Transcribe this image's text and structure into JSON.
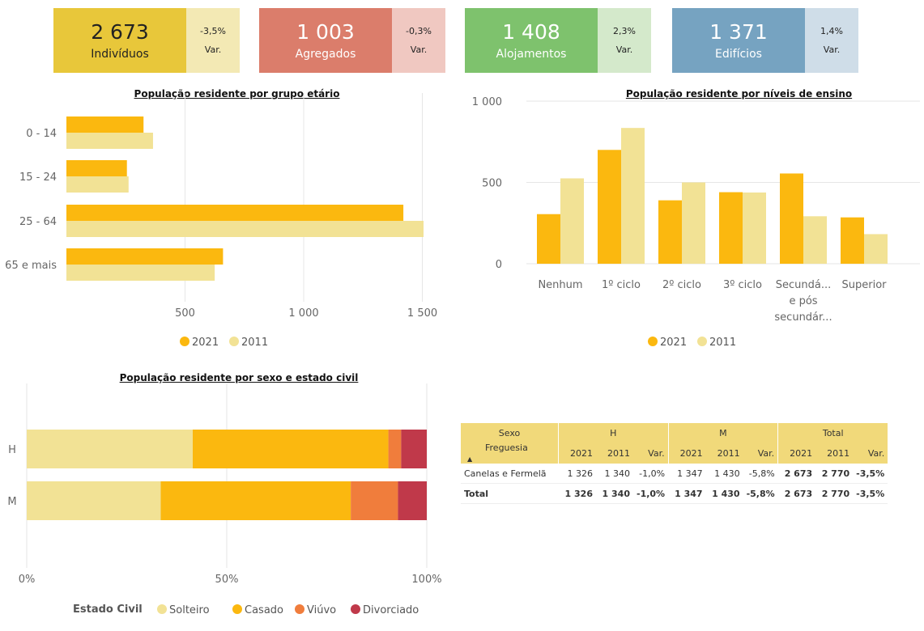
{
  "kpis": [
    {
      "value": "2 673",
      "label": "Indivíduos",
      "var": "-3,5%",
      "var_label": "Var.",
      "color": "#e8c73a",
      "var_color": "#f3e9b4",
      "text_color": "#222222"
    },
    {
      "value": "1 003",
      "label": "Agregados",
      "var": "-0,3%",
      "var_label": "Var.",
      "color": "#db7d6b",
      "var_color": "#f0c8c1",
      "text_color": "#ffffff"
    },
    {
      "value": "1 408",
      "label": "Alojamentos",
      "var": "2,3%",
      "var_label": "Var.",
      "color": "#7ec26d",
      "var_color": "#d4e9cb",
      "text_color": "#ffffff"
    },
    {
      "value": "1 371",
      "label": "Edifícios",
      "var": "1,4%",
      "var_label": "Var.",
      "color": "#76a3c1",
      "var_color": "#cfdde8",
      "text_color": "#ffffff"
    }
  ],
  "chart_data": [
    {
      "type": "bar",
      "orientation": "horizontal",
      "title": "População residente por grupo etário",
      "categories": [
        "0 - 14",
        "15 - 24",
        "25 - 64",
        "65 e mais"
      ],
      "series": [
        {
          "name": "2021",
          "values": [
            325,
            255,
            1420,
            660
          ],
          "color": "#fbb80f"
        },
        {
          "name": "2011",
          "values": [
            365,
            262,
            1505,
            625
          ],
          "color": "#f2e295"
        }
      ],
      "xticks": [
        "500",
        "1 000",
        "1 500"
      ],
      "xtick_values": [
        500,
        1000,
        1500
      ],
      "xlim": [
        0,
        1560
      ],
      "grid": true,
      "legend": "bottom"
    },
    {
      "type": "bar",
      "title": "População residente por níveis de ensino",
      "categories": [
        [
          "Nenhum"
        ],
        [
          "1º ciclo"
        ],
        [
          "2º ciclo"
        ],
        [
          "3º ciclo"
        ],
        [
          "Secundá...",
          "e pós",
          "secundár..."
        ],
        [
          "Superior"
        ]
      ],
      "series": [
        {
          "name": "2021",
          "values": [
            305,
            700,
            390,
            440,
            555,
            285
          ],
          "color": "#fbb80f"
        },
        {
          "name": "2011",
          "values": [
            525,
            835,
            500,
            438,
            292,
            182
          ],
          "color": "#f2e295"
        }
      ],
      "yticks": [
        "0",
        "500",
        "1 000"
      ],
      "ytick_values": [
        0,
        500,
        1000
      ],
      "ylim": [
        0,
        1000
      ],
      "grid": true,
      "legend": "bottom"
    },
    {
      "type": "bar",
      "stacked": "percent",
      "orientation": "horizontal",
      "title": "População residente por sexo e estado civil",
      "categories": [
        "H",
        "M"
      ],
      "series": [
        {
          "name": "Solteiro",
          "values": [
            41.5,
            33.5
          ],
          "color": "#f2e295"
        },
        {
          "name": "Casado",
          "values": [
            48.9,
            47.5
          ],
          "color": "#fbb80f"
        },
        {
          "name": "Viúvo",
          "values": [
            3.2,
            11.8
          ],
          "color": "#f07d3c"
        },
        {
          "name": "Divorciado",
          "values": [
            6.4,
            7.2
          ],
          "color": "#c0394a"
        }
      ],
      "xticks": [
        "0%",
        "50%",
        "100%"
      ],
      "xtick_values": [
        0,
        50,
        100
      ],
      "legend_title": "Estado Civil",
      "legend": "bottom"
    }
  ],
  "table": {
    "header_sexo": "Sexo",
    "groups": [
      "H",
      "M",
      "Total"
    ],
    "header_freguesia": "Freguesia",
    "cols": [
      "2021",
      "2011",
      "Var.",
      "2021",
      "2011",
      "Var.",
      "2021",
      "2011",
      "Var."
    ],
    "rows": [
      {
        "name": "Canelas e Fermelã",
        "values": [
          "1 326",
          "1 340",
          "-1,0%",
          "1 347",
          "1 430",
          "-5,8%",
          "2 673",
          "2 770",
          "-3,5%"
        ]
      },
      {
        "name": "Total",
        "values": [
          "1 326",
          "1 340",
          "-1,0%",
          "1 347",
          "1 430",
          "-5,8%",
          "2 673",
          "2 770",
          "-3,5%"
        ]
      }
    ]
  }
}
